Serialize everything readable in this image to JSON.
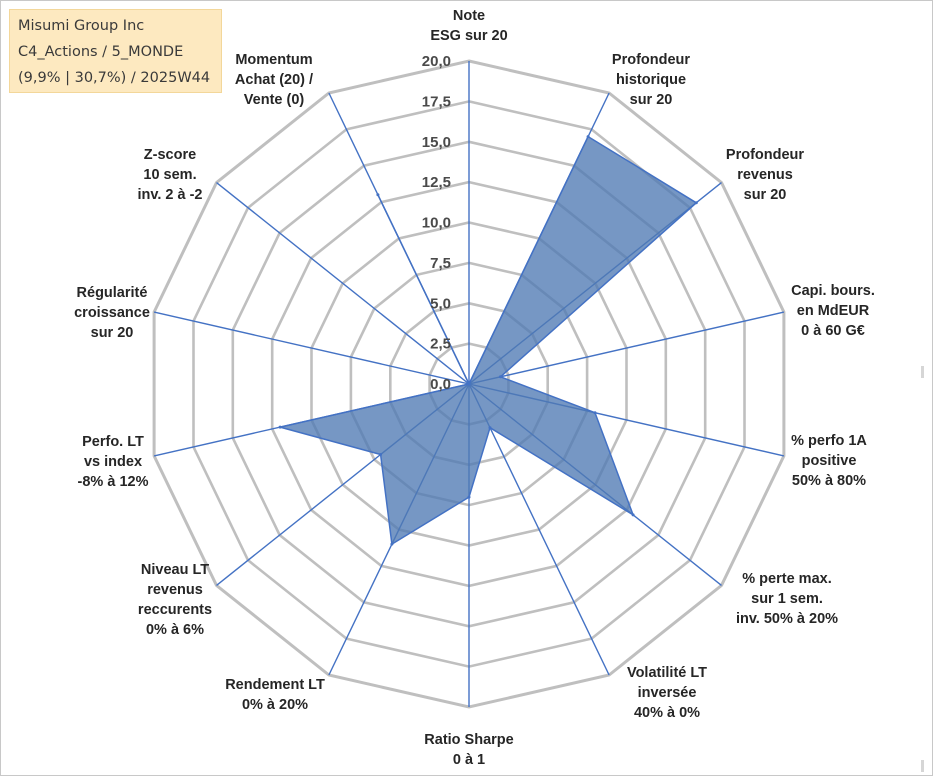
{
  "title_box": {
    "line1": "Misumi Group Inc",
    "line2": "C4_Actions / 5_MONDE",
    "line3": "(9,9% | 30,7%) / 2025W44"
  },
  "colors": {
    "grid": "#bfbfbf",
    "spoke": "#4472c4",
    "fill": "#4f7ab3",
    "fill_opacity": "0.78"
  },
  "chart_data": {
    "type": "radar",
    "title": "Misumi Group Inc",
    "rmax": 20,
    "tick_step": 2.5,
    "ticks": [
      "0,0",
      "2,5",
      "5,0",
      "7,5",
      "10,0",
      "12,5",
      "15,0",
      "17,5",
      "20,0"
    ],
    "axes": [
      {
        "label": [
          "Note",
          "ESG sur 20"
        ],
        "value": 0
      },
      {
        "label": [
          "Profondeur",
          "historique",
          "sur 20"
        ],
        "value": 17.0
      },
      {
        "label": [
          "Profondeur",
          "revenus",
          "sur 20"
        ],
        "value": 18.0
      },
      {
        "label": [
          "Capi. bours.",
          "en MdEUR",
          "0 à 60 G€"
        ],
        "value": 2.0
      },
      {
        "label": [
          "% perfo 1A",
          "positive",
          "50% à 80%"
        ],
        "value": 8.0
      },
      {
        "label": [
          "% perte max.",
          "sur 1 sem.",
          "inv. 50% à 20%"
        ],
        "value": 13.0
      },
      {
        "label": [
          "Volatilité LT",
          "inversée",
          "40% à 0%"
        ],
        "value": 3.0
      },
      {
        "label": [
          "Ratio Sharpe",
          "0 à 1"
        ],
        "value": 7.0
      },
      {
        "label": [
          "Rendement LT",
          "0% à 20%"
        ],
        "value": 11.0
      },
      {
        "label": [
          "Niveau LT",
          "revenus",
          "reccurents",
          "0% à 6%"
        ],
        "value": 7.0
      },
      {
        "label": [
          "Perfo. LT",
          "vs index",
          "-8% à 12%"
        ],
        "value": 12.0
      },
      {
        "label": [
          "Régularité",
          "croissance",
          "sur 20"
        ],
        "value": 0
      },
      {
        "label": [
          "Z-score",
          "10 sem.",
          "inv. 2 à -2"
        ],
        "value": 0
      },
      {
        "label": [
          "Momentum",
          "Achat (20) /",
          "Vente (0)"
        ],
        "value": 13.0
      }
    ]
  }
}
